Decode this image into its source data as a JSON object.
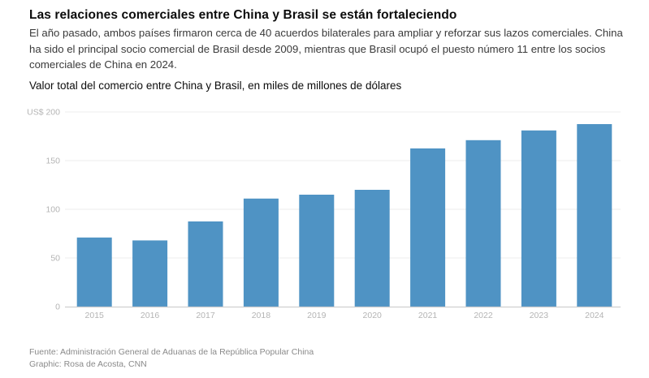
{
  "header": {
    "title": "Las relaciones comerciales entre China y Brasil se están fortaleciendo",
    "description": "El año pasado, ambos países firmaron cerca de 40 acuerdos bilaterales para ampliar y reforzar sus lazos comerciales. China ha sido el principal socio comercial de Brasil desde 2009, mientras que Brasil ocupó el puesto número 11 entre los socios comerciales de China en 2024.",
    "subtitle": "Valor total del comercio entre China y Brasil, en miles de millones de dólares"
  },
  "chart_data": {
    "type": "bar",
    "title": "Valor total del comercio entre China y Brasil, en miles de millones de dólares",
    "xlabel": "",
    "ylabel": "",
    "categories": [
      "2015",
      "2016",
      "2017",
      "2018",
      "2019",
      "2020",
      "2021",
      "2022",
      "2023",
      "2024"
    ],
    "values": [
      71,
      68,
      87.5,
      111,
      115,
      120,
      162.5,
      171,
      181,
      187.5
    ],
    "ylim": [
      0,
      200
    ],
    "yticks": [
      0,
      50,
      100,
      150,
      200
    ],
    "ytick_labels": [
      "0",
      "50",
      "100",
      "150",
      "US$ 200"
    ],
    "grid": true,
    "legend": "none",
    "bar_color": "#4f93c4",
    "grid_color": "#ececec",
    "axis_color": "#cfcfcf"
  },
  "footer": {
    "source": "Fuente: Administración General de Aduanas de la República Popular China",
    "credit": "Graphic: Rosa de Acosta, CNN"
  }
}
